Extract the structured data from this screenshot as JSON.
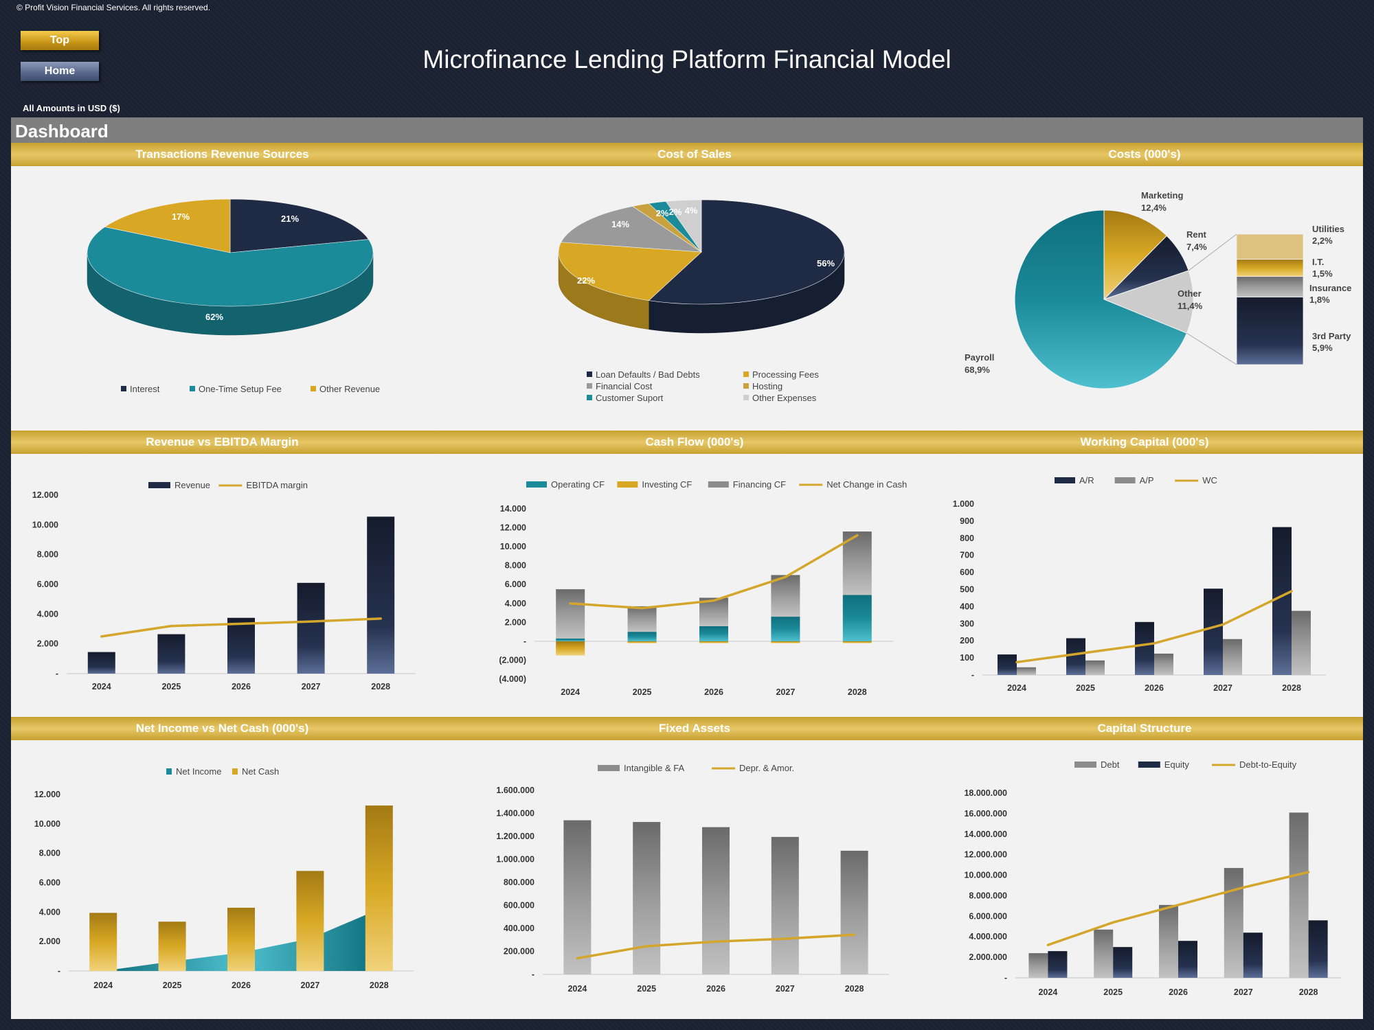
{
  "header": {
    "copyright": "© Profit Vision Financial Services. All rights reserved.",
    "top_button": "Top",
    "home_button": "Home",
    "title": "Microfinance Lending Platform Financial Model",
    "currency_note": "All Amounts in  USD ($)",
    "dashboard_label": "Dashboard"
  },
  "colors": {
    "navy": "#1f2a44",
    "teal": "#1b8a99",
    "gold": "#d8a824",
    "grey": "#8c8c8c",
    "silver": "#c8c8c8"
  },
  "chart_data": [
    {
      "id": "revenue-sources",
      "type": "pie",
      "title": "Transactions Revenue Sources",
      "labels": [
        "Interest",
        "One-Time Setup Fee",
        "Other Revenue"
      ],
      "values": [
        21,
        62,
        17
      ],
      "data_labels": [
        "21%",
        "62%",
        "17%"
      ],
      "colors": [
        "#1f2a44",
        "#1b8a99",
        "#d8a824"
      ],
      "legend": "bottom"
    },
    {
      "id": "cost-of-sales",
      "type": "pie",
      "title": "Cost of Sales",
      "labels": [
        "Loan Defaults / Bad Debts",
        "Processing Fees",
        "Financial Cost",
        "Hosting",
        "Customer Suport",
        "Other Expenses"
      ],
      "values": [
        56,
        22,
        14,
        2,
        2,
        4
      ],
      "data_labels": [
        "56%",
        "22%",
        "14%",
        "2%",
        "2%",
        "4%"
      ],
      "colors": [
        "#1f2a44",
        "#d8a824",
        "#9a9a9a",
        "#c9a13f",
        "#1b8a99",
        "#cfcfcf"
      ],
      "legend": "bottom"
    },
    {
      "id": "costs",
      "type": "pie",
      "title": "Costs (000's)",
      "labels": [
        "Payroll",
        "Marketing",
        "Rent",
        "Other"
      ],
      "values": [
        68.9,
        12.4,
        7.4,
        11.4
      ],
      "data_labels": [
        "68,9%",
        "12,4%",
        "7,4%",
        "11,4%"
      ],
      "colors": [
        "#1b8a99",
        "#d8a824",
        "#1f2a44",
        "#cccccc"
      ],
      "other_breakdown": {
        "labels": [
          "Utilities",
          "I.T.",
          "Insurance",
          "3rd Party"
        ],
        "values": [
          2.2,
          1.5,
          1.8,
          5.9
        ],
        "data_labels": [
          "2,2%",
          "1,5%",
          "1,8%",
          "5,9%"
        ],
        "colors": [
          "#dcc27e",
          "#e8b730",
          "#9a9a9a",
          "#27375a"
        ]
      }
    },
    {
      "id": "revenue-ebitda",
      "type": "bar",
      "title": "Revenue vs EBITDA Margin",
      "categories": [
        "2024",
        "2025",
        "2026",
        "2027",
        "2028"
      ],
      "series": [
        {
          "name": "Revenue",
          "type": "bar",
          "values": [
            1450,
            2650,
            3750,
            6100,
            10550
          ]
        },
        {
          "name": "EBITDA margin",
          "type": "line",
          "values": [
            2500,
            3200,
            3350,
            3500,
            3700
          ]
        }
      ],
      "ylim": [
        0,
        12000
      ],
      "yticks": [
        "-",
        "2.000",
        "4.000",
        "6.000",
        "8.000",
        "10.000",
        "12.000"
      ],
      "legend": "top"
    },
    {
      "id": "cash-flow",
      "type": "bar",
      "title": "Cash Flow (000's)",
      "categories": [
        "2024",
        "2025",
        "2026",
        "2027",
        "2028"
      ],
      "series": [
        {
          "name": "Operating CF",
          "type": "bar",
          "values": [
            300,
            1000,
            1600,
            2600,
            4900
          ]
        },
        {
          "name": "Investing CF",
          "type": "bar",
          "values": [
            -1500,
            -200,
            -200,
            -200,
            -200
          ]
        },
        {
          "name": "Financing CF",
          "type": "bar",
          "values": [
            5200,
            2700,
            3000,
            4400,
            6700
          ]
        },
        {
          "name": "Net Change in Cash",
          "type": "line",
          "values": [
            4000,
            3500,
            4300,
            6800,
            11200
          ]
        }
      ],
      "ylim": [
        -4000,
        14000
      ],
      "yticks": [
        "(4.000)",
        "(2.000)",
        "-",
        "2.000",
        "4.000",
        "6.000",
        "8.000",
        "10.000",
        "12.000",
        "14.000"
      ],
      "legend": "top"
    },
    {
      "id": "working-capital",
      "type": "bar",
      "title": "Working Capital (000's)",
      "categories": [
        "2024",
        "2025",
        "2026",
        "2027",
        "2028"
      ],
      "series": [
        {
          "name": "A/R",
          "type": "bar",
          "values": [
            120,
            215,
            310,
            505,
            865
          ]
        },
        {
          "name": "A/P",
          "type": "bar",
          "values": [
            45,
            85,
            125,
            210,
            375
          ]
        },
        {
          "name": "WC",
          "type": "line",
          "values": [
            75,
            130,
            185,
            295,
            490
          ]
        }
      ],
      "ylim": [
        0,
        1000
      ],
      "yticks": [
        "-",
        "100",
        "200",
        "300",
        "400",
        "500",
        "600",
        "700",
        "800",
        "900",
        "1.000"
      ],
      "legend": "top"
    },
    {
      "id": "net-income-cash",
      "type": "bar",
      "title": "Net Income vs Net Cash (000's)",
      "categories": [
        "2024",
        "2025",
        "2026",
        "2027",
        "2028"
      ],
      "series": [
        {
          "name": "Net Income",
          "type": "area",
          "values": [
            0,
            650,
            1250,
            2200,
            4200
          ]
        },
        {
          "name": "Net Cash",
          "type": "bar",
          "values": [
            3950,
            3350,
            4300,
            6800,
            11250
          ]
        }
      ],
      "ylim": [
        0,
        12000
      ],
      "yticks": [
        "-",
        "2.000",
        "4.000",
        "6.000",
        "8.000",
        "10.000",
        "12.000"
      ],
      "legend": "top"
    },
    {
      "id": "fixed-assets",
      "type": "bar",
      "title": "Fixed Assets",
      "categories": [
        "2024",
        "2025",
        "2026",
        "2027",
        "2028"
      ],
      "series": [
        {
          "name": "Intangible & FA",
          "type": "bar",
          "values": [
            1340000,
            1325000,
            1280000,
            1195000,
            1075000
          ]
        },
        {
          "name": "Depr. & Amor.",
          "type": "line",
          "values": [
            140000,
            245000,
            285000,
            310000,
            345000
          ]
        }
      ],
      "ylim": [
        0,
        1600000
      ],
      "yticks": [
        "-",
        "200.000",
        "400.000",
        "600.000",
        "800.000",
        "1.000.000",
        "1.200.000",
        "1.400.000",
        "1.600.000"
      ],
      "legend": "top"
    },
    {
      "id": "capital-structure",
      "type": "bar",
      "title": "Capital Structure",
      "categories": [
        "2024",
        "2025",
        "2026",
        "2027",
        "2028"
      ],
      "series": [
        {
          "name": "Debt",
          "type": "bar",
          "values": [
            2400000,
            4700000,
            7100000,
            10700000,
            16100000
          ]
        },
        {
          "name": "Equity",
          "type": "bar",
          "values": [
            2600000,
            3000000,
            3600000,
            4400000,
            5600000
          ]
        },
        {
          "name": "Debt-to-Equity",
          "type": "line",
          "values": [
            3200000,
            5400000,
            7100000,
            8800000,
            10300000
          ]
        }
      ],
      "ylim": [
        0,
        18000000
      ],
      "yticks": [
        "-",
        "2.000.000",
        "4.000.000",
        "6.000.000",
        "8.000.000",
        "10.000.000",
        "12.000.000",
        "14.000.000",
        "16.000.000",
        "18.000.000"
      ],
      "legend": "top"
    }
  ]
}
